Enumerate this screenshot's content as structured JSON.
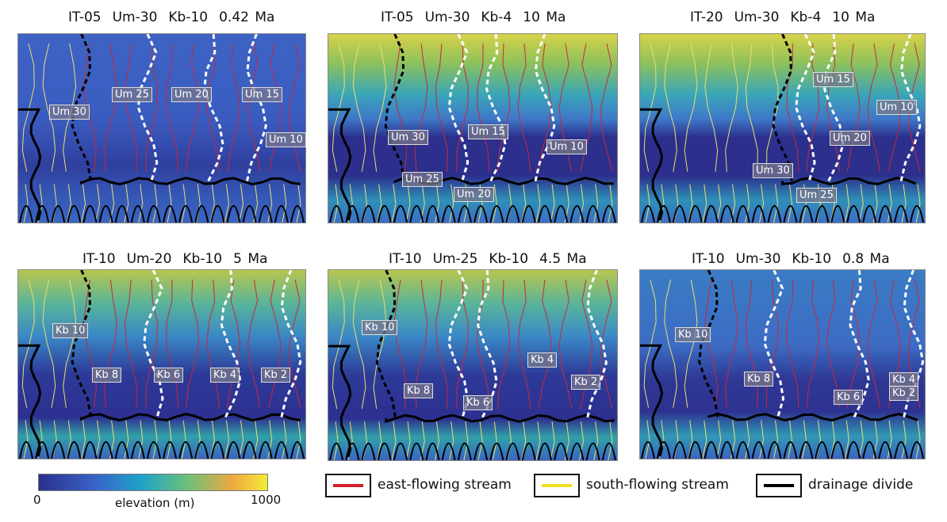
{
  "panels": [
    {
      "title": [
        "IT-05",
        "Um-30",
        "Kb-10",
        "0.42 Ma"
      ],
      "labels": [
        "Um 30",
        "Um 25",
        "Um 20",
        "Um 15",
        "Um 10"
      ]
    },
    {
      "title": [
        "IT-05",
        "Um-30",
        "Kb-4",
        "10 Ma"
      ],
      "labels": [
        "Um 30",
        "Um 15",
        "Um 10",
        "Um 25",
        "Um 20"
      ]
    },
    {
      "title": [
        "IT-20",
        "Um-30",
        "Kb-4",
        "10 Ma"
      ],
      "labels": [
        "Um 15",
        "Um 10",
        "Um 20",
        "Um 30",
        "Um 25"
      ]
    },
    {
      "title": [
        "IT-10",
        "Um-20",
        "Kb-10",
        "5 Ma"
      ],
      "labels": [
        "Kb 10",
        "Kb 8",
        "Kb 6",
        "Kb 4",
        "Kb 2"
      ]
    },
    {
      "title": [
        "IT-10",
        "Um-25",
        "Kb-10",
        "4.5 Ma"
      ],
      "labels": [
        "Kb 10",
        "Kb 4",
        "Kb 8",
        "Kb 6",
        "Kb 2"
      ]
    },
    {
      "title": [
        "IT-10",
        "Um-30",
        "Kb-10",
        "0.8 Ma"
      ],
      "labels": [
        "Kb 10",
        "Kb 8",
        "Kb 6",
        "Kb 4",
        "Kb 2"
      ]
    }
  ],
  "colorbar": {
    "min": "0",
    "max": "1000",
    "label": "elevation (m)",
    "colors": [
      "#2c2f8c",
      "#3864c8",
      "#1ea3c8",
      "#6cc07a",
      "#f0a840",
      "#f2ec3a"
    ]
  },
  "legend": [
    {
      "label": "east-flowing stream",
      "color": "#d0202a"
    },
    {
      "label": "south-flowing stream",
      "color": "#f2e020"
    },
    {
      "label": "drainage divide",
      "color": "#000000"
    }
  ]
}
